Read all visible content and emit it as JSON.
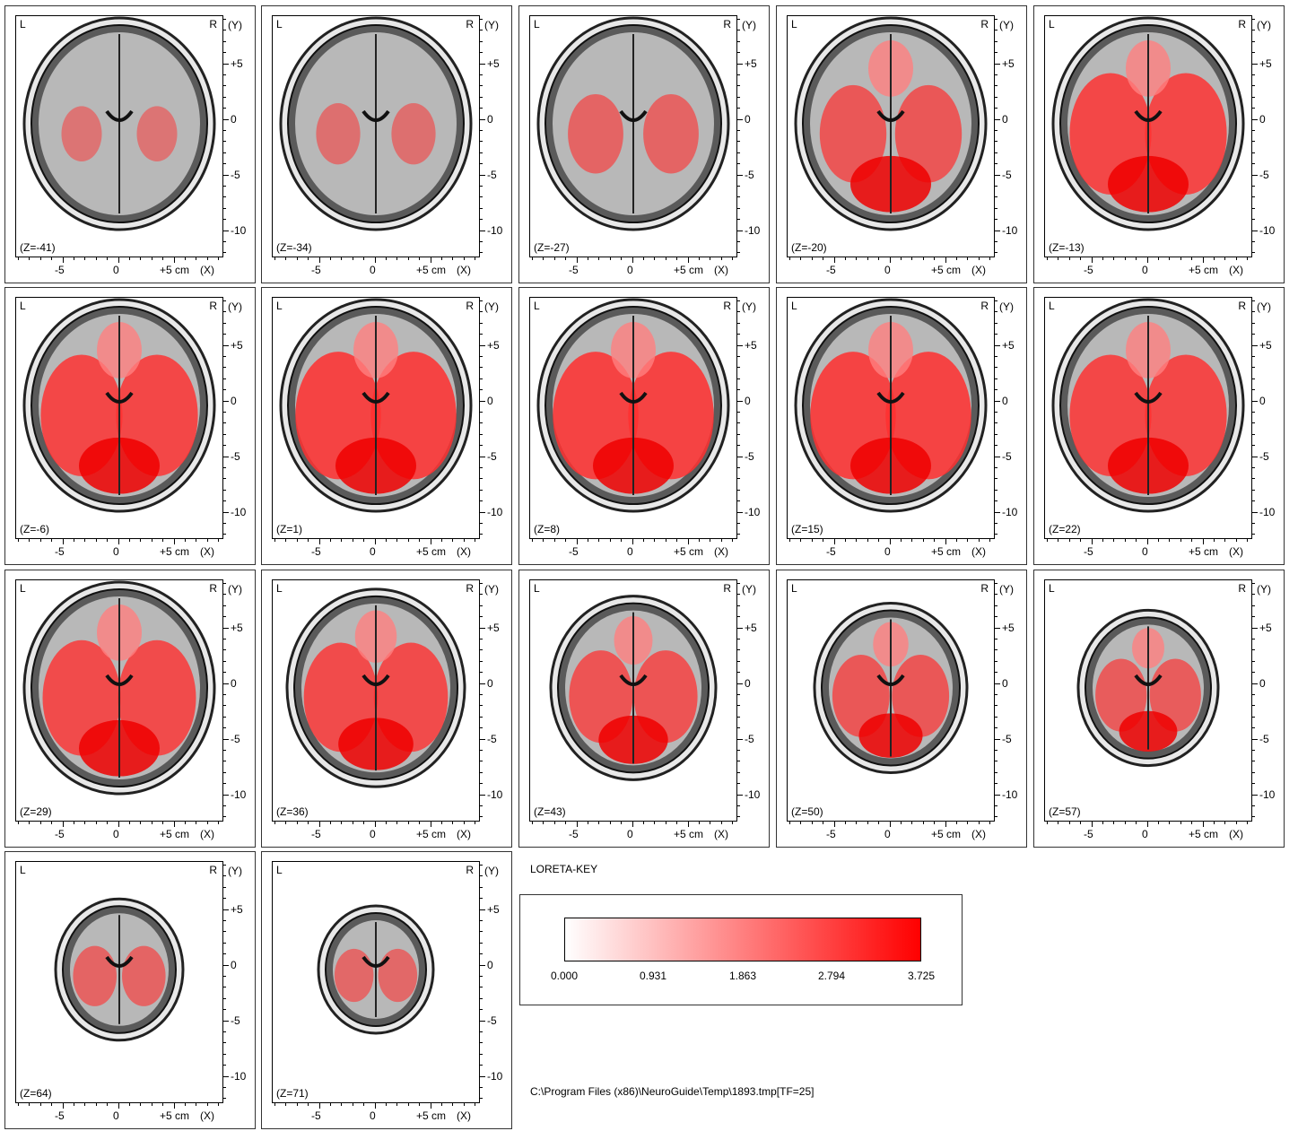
{
  "axes": {
    "left_label": "L",
    "right_label": "R",
    "y_name": "(Y)",
    "x_name": "(X)",
    "y_ticks": [
      "+5",
      "0",
      "-5",
      "-10"
    ],
    "x_ticks": [
      "-5",
      "0",
      "+5 cm"
    ]
  },
  "slices": [
    {
      "z": "(Z=-41)",
      "activation": 0.25
    },
    {
      "z": "(Z=-34)",
      "activation": 0.3
    },
    {
      "z": "(Z=-27)",
      "activation": 0.45
    },
    {
      "z": "(Z=-20)",
      "activation": 0.6
    },
    {
      "z": "(Z=-13)",
      "activation": 0.8
    },
    {
      "z": "(Z=-6)",
      "activation": 0.8
    },
    {
      "z": "(Z=1)",
      "activation": 0.85
    },
    {
      "z": "(Z=8)",
      "activation": 0.85
    },
    {
      "z": "(Z=15)",
      "activation": 0.85
    },
    {
      "z": "(Z=22)",
      "activation": 0.8
    },
    {
      "z": "(Z=29)",
      "activation": 0.75
    },
    {
      "z": "(Z=36)",
      "activation": 0.75
    },
    {
      "z": "(Z=43)",
      "activation": 0.65
    },
    {
      "z": "(Z=50)",
      "activation": 0.6
    },
    {
      "z": "(Z=57)",
      "activation": 0.55
    },
    {
      "z": "(Z=64)",
      "activation": 0.45
    },
    {
      "z": "(Z=71)",
      "activation": 0.4
    }
  ],
  "key": {
    "title": "LORETA-KEY",
    "ticks": [
      "0.000",
      "0.931",
      "1.863",
      "2.794",
      "3.725"
    ],
    "min": 0.0,
    "max": 3.725,
    "color_low": "#ffffff",
    "color_high": "#ff0000"
  },
  "file_path": "C:\\Program Files (x86)\\NeuroGuide\\Temp\\1893.tmp[TF=25]"
}
